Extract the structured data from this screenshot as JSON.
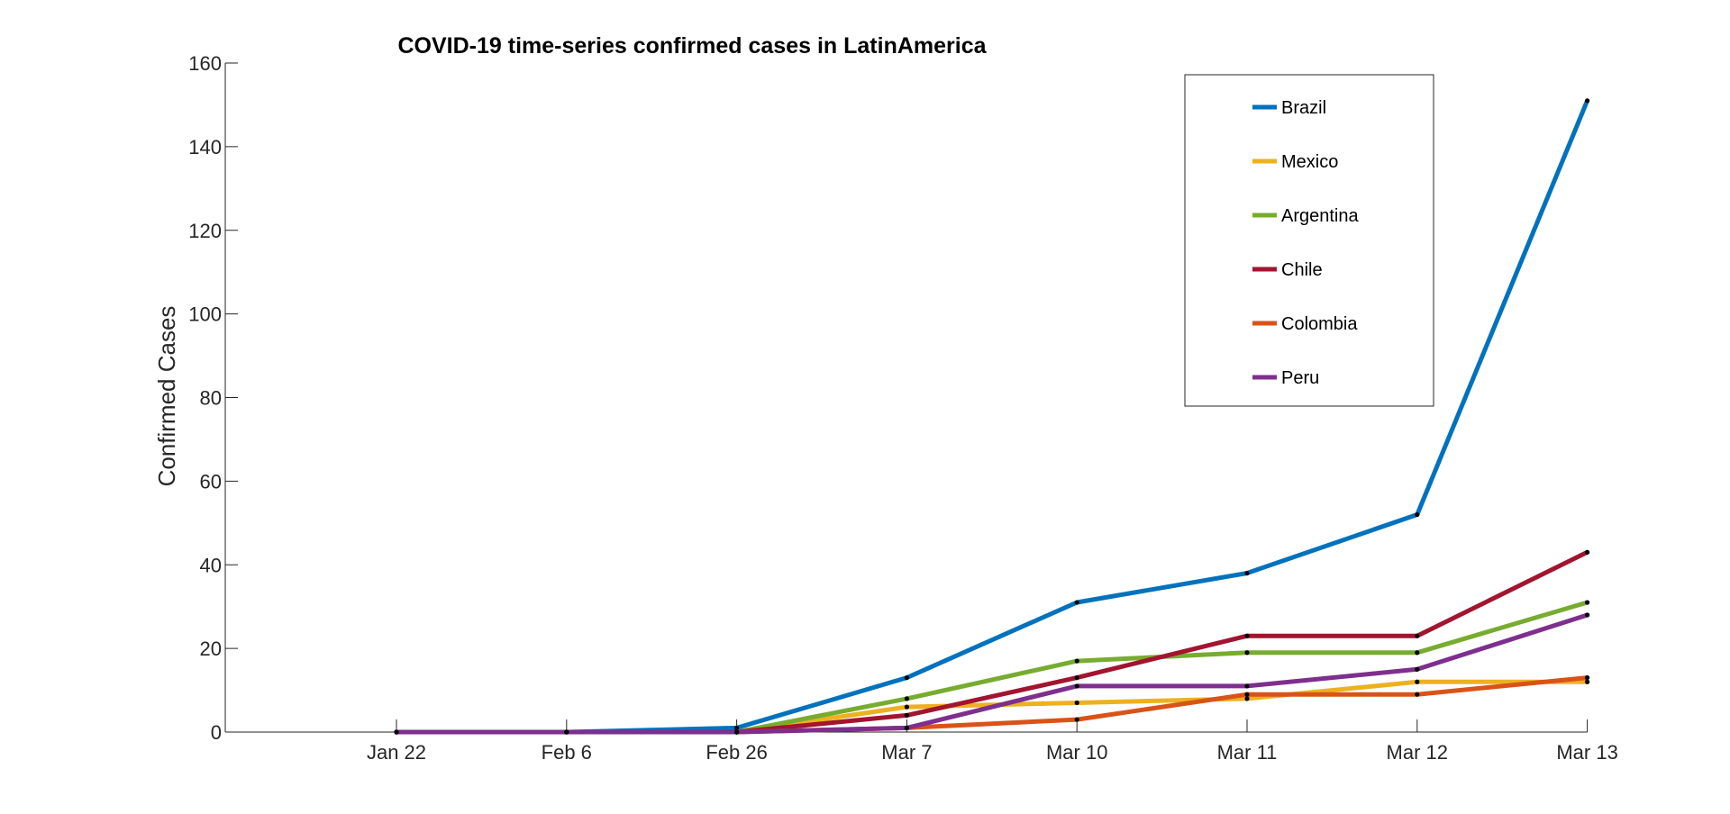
{
  "chart_data": {
    "type": "line",
    "title": "COVID-19 time-series confirmed cases in LatinAmerica",
    "xlabel": "",
    "ylabel": "Confirmed Cases",
    "categories": [
      "Jan 22",
      "Feb 6",
      "Feb 26",
      "Mar 7",
      "Mar 10",
      "Mar 11",
      "Mar 12",
      "Mar 13"
    ],
    "ylim": [
      0,
      160
    ],
    "yticks": [
      0,
      20,
      40,
      60,
      80,
      100,
      120,
      140,
      160
    ],
    "grid": false,
    "legend_position": "top-right",
    "series": [
      {
        "name": "Brazil",
        "color": "#0072BD",
        "values": [
          0,
          0,
          1,
          13,
          31,
          38,
          52,
          151
        ]
      },
      {
        "name": "Mexico",
        "color": "#EDB120",
        "values": [
          0,
          0,
          0,
          6,
          7,
          8,
          12,
          12
        ]
      },
      {
        "name": "Argentina",
        "color": "#77AC30",
        "values": [
          0,
          0,
          0,
          8,
          17,
          19,
          19,
          31
        ]
      },
      {
        "name": "Chile",
        "color": "#A2142F",
        "values": [
          0,
          0,
          0,
          4,
          13,
          23,
          23,
          43
        ]
      },
      {
        "name": "Colombia",
        "color": "#D95319",
        "values": [
          0,
          0,
          0,
          1,
          3,
          9,
          9,
          13
        ]
      },
      {
        "name": "Peru",
        "color": "#7E2F8E",
        "values": [
          0,
          0,
          0,
          1,
          11,
          11,
          15,
          28
        ]
      }
    ]
  }
}
